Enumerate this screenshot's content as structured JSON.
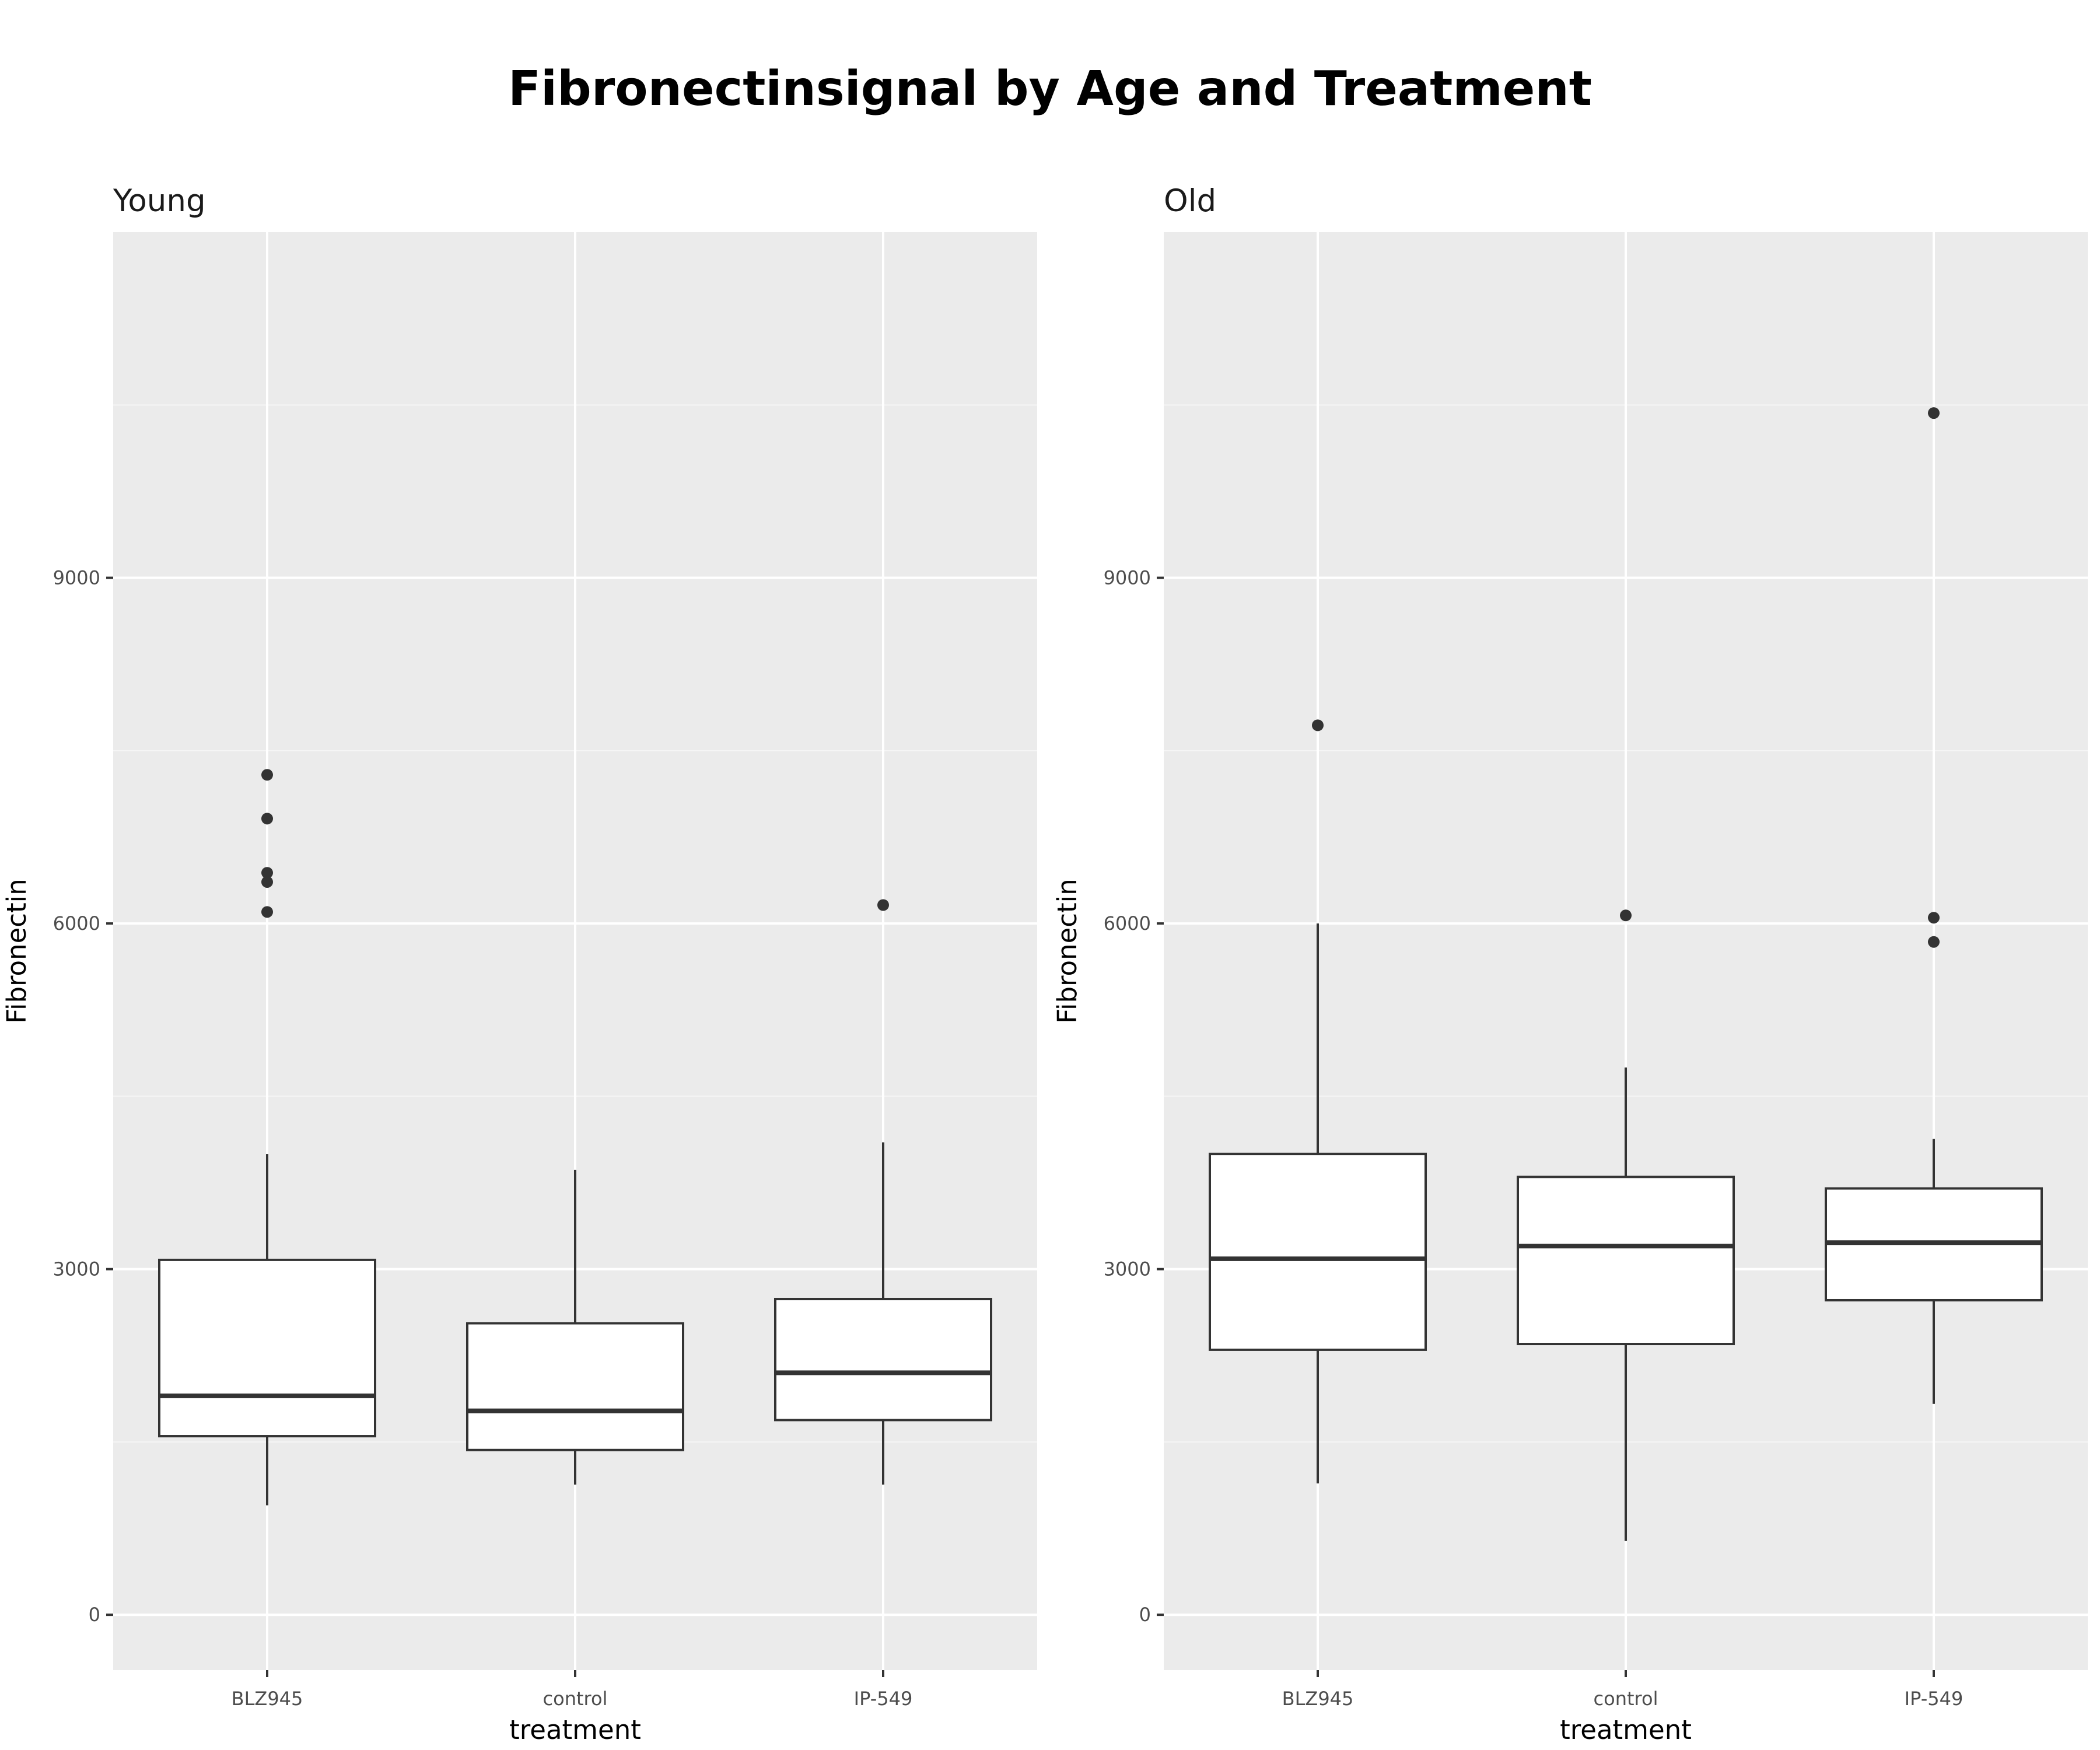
{
  "title": "Fibronectinsignal by Age and Treatment",
  "colors": {
    "panel_background": "#EBEBEB",
    "grid_major": "#FFFFFF",
    "grid_minor": "#F5F5F5",
    "box_fill": "#FFFFFF",
    "box_line": "#333333",
    "outlier": "#333333",
    "tick_text": "#4D4D4D"
  },
  "chart_data": [
    {
      "type": "box",
      "facet": "Young",
      "xlabel": "treatment",
      "ylabel": "Fibronectin",
      "categories": [
        "BLZ945",
        "control",
        "IP-549"
      ],
      "y_ticks": [
        0,
        3000,
        6000,
        9000
      ],
      "ylim": [
        -480,
        12000
      ],
      "grid": true,
      "boxes": [
        {
          "category": "BLZ945",
          "whisker_low": 950,
          "q1": 1550,
          "median": 1900,
          "q3": 3080,
          "whisker_high": 4000,
          "outliers": [
            6100,
            6360,
            6440,
            6910,
            7290
          ]
        },
        {
          "category": "control",
          "whisker_low": 1130,
          "q1": 1430,
          "median": 1770,
          "q3": 2530,
          "whisker_high": 3860,
          "outliers": []
        },
        {
          "category": "IP-549",
          "whisker_low": 1130,
          "q1": 1690,
          "median": 2100,
          "q3": 2740,
          "whisker_high": 4100,
          "outliers": [
            6160
          ]
        }
      ]
    },
    {
      "type": "box",
      "facet": "Old",
      "xlabel": "treatment",
      "ylabel": "Fibronectin",
      "categories": [
        "BLZ945",
        "control",
        "IP-549"
      ],
      "y_ticks": [
        0,
        3000,
        6000,
        9000
      ],
      "ylim": [
        -480,
        12000
      ],
      "grid": true,
      "boxes": [
        {
          "category": "BLZ945",
          "whisker_low": 1140,
          "q1": 2300,
          "median": 3090,
          "q3": 4000,
          "whisker_high": 6000,
          "outliers": [
            7720
          ]
        },
        {
          "category": "control",
          "whisker_low": 640,
          "q1": 2350,
          "median": 3200,
          "q3": 3800,
          "whisker_high": 4750,
          "outliers": [
            6070
          ]
        },
        {
          "category": "IP-549",
          "whisker_low": 1830,
          "q1": 2730,
          "median": 3230,
          "q3": 3700,
          "whisker_high": 4130,
          "outliers": [
            5840,
            6050,
            10430
          ]
        }
      ]
    }
  ]
}
